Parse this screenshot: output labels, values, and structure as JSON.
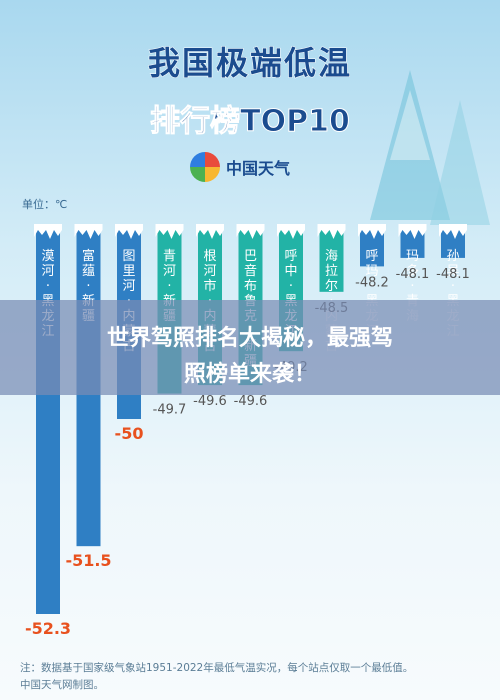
{
  "title_line1": "我国极端低温",
  "title_line2": "排行榜TOP10",
  "logo_text": "中国天气",
  "unit_label": "单位：℃",
  "footnote_line1": "注：数据基于国家级气象站1951-2022年最低气温实况，每个站点仅取一个最低值。",
  "footnote_line2": "中国天气网制图。",
  "banner_line1": "世界驾照排名大揭秘，最强驾",
  "banner_line2": "照榜单来袭！",
  "colors": {
    "bar_blue": "#2f7fc4",
    "bar_teal": "#22b3a6",
    "title": "#1b4c8f"
  },
  "chart_data": {
    "type": "bar",
    "orientation": "vertical-down",
    "categories": [
      "漠河·黑龙江",
      "富蕴·新疆",
      "图里河·内蒙古",
      "青河·新疆",
      "根河市·内蒙古",
      "巴音布鲁克·新疆",
      "呼中·黑龙江",
      "海拉尔·内蒙古",
      "呼玛·黑龙江",
      "玛多·青海",
      "孙吴·黑龙江"
    ],
    "values": [
      -52.3,
      -51.5,
      -50,
      -49.7,
      -49.6,
      -49.6,
      -49.2,
      -48.5,
      -48.2,
      -48.1,
      -48.1
    ],
    "value_labels": [
      "-52.3",
      "-51.5",
      "-50",
      "-49.7",
      "-49.6",
      "-49.6",
      "-49.2",
      "-48.5",
      "-48.2",
      "-48.1",
      "-48.1"
    ],
    "bar_colors": [
      "#2f7fc4",
      "#2f7fc4",
      "#2f7fc4",
      "#22b3a6",
      "#22b3a6",
      "#22b3a6",
      "#22b3a6",
      "#22b3a6",
      "#2f7fc4",
      "#2f7fc4",
      "#2f7fc4"
    ],
    "label_colors": [
      "#e8511e",
      "#e8511e",
      "#e8511e",
      "#555555",
      "#555555",
      "#555555",
      "#555555",
      "#555555",
      "#555555",
      "#555555",
      "#555555"
    ],
    "ylim": [
      -52.3,
      -47.7
    ],
    "grid": false
  }
}
